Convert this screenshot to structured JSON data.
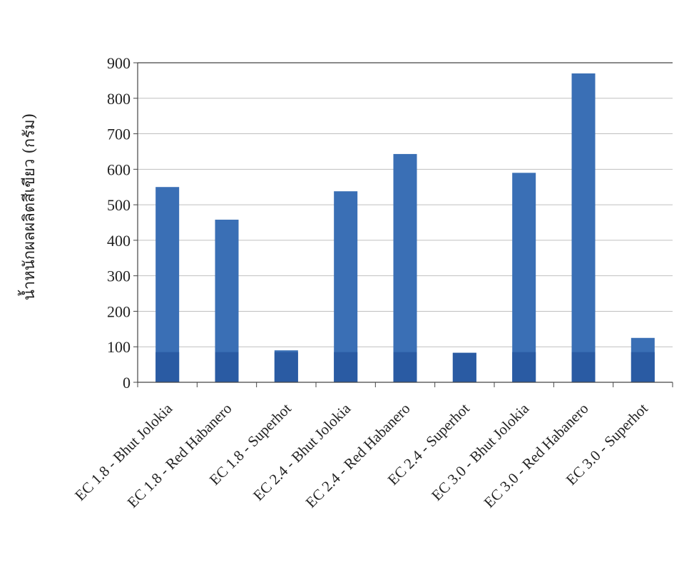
{
  "chart_data": {
    "type": "bar",
    "title": "",
    "xlabel": "",
    "ylabel": "น้ำหนักผลผลิตสีเขียว (กรัม)",
    "ylim": [
      0,
      900
    ],
    "yticks": [
      0,
      100,
      200,
      300,
      400,
      500,
      600,
      700,
      800,
      900
    ],
    "grid": "horizontal",
    "categories": [
      "EC 1.8 - Bhut Jolokia",
      "EC 1.8 - Red Habanero",
      "EC 1.8 - Superhot",
      "EC 2.4 - Bhut Jolokia",
      "EC 2.4 - Red Habanero",
      "EC 2.4 - Superhot",
      "EC 3.0 - Bhut Jolokia",
      "EC 3.0 - Red Habanero",
      "EC 3.0 - Superhot"
    ],
    "values": [
      550,
      458,
      90,
      538,
      643,
      83,
      590,
      870,
      125
    ],
    "colors": {
      "bar": "#3a6fb5",
      "bar_base": "#2a5ba3",
      "axis": "#444444",
      "grid": "#bfbfbf"
    }
  }
}
